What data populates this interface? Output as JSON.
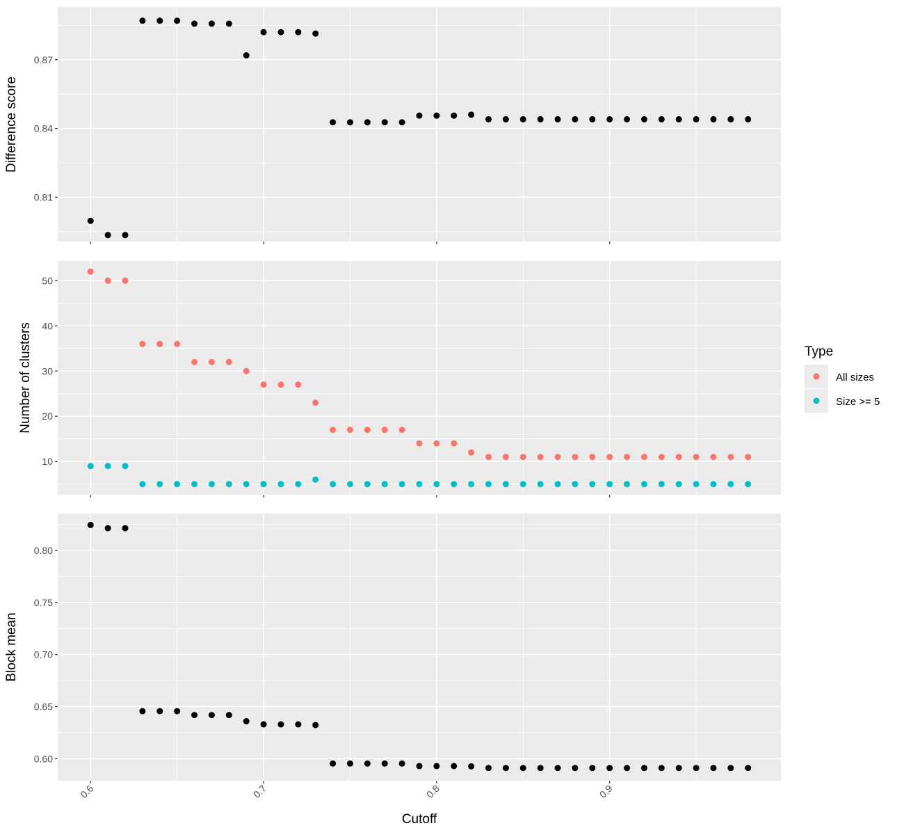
{
  "chart_data": [
    {
      "type": "scatter",
      "panel": "top",
      "ylabel": "Difference score",
      "ylim": [
        0.7907,
        0.893
      ],
      "yticks": [
        0.81,
        0.84,
        0.87
      ],
      "ytick_labels": [
        "0.81",
        "0.84",
        "0.87"
      ],
      "series": [
        {
          "color": "#000000",
          "x": [
            0.6,
            0.61,
            0.62,
            0.63,
            0.64,
            0.65,
            0.66,
            0.67,
            0.68,
            0.69,
            0.7,
            0.71,
            0.72,
            0.73,
            0.74,
            0.75,
            0.76,
            0.77,
            0.78,
            0.79,
            0.8,
            0.81,
            0.82,
            0.83,
            0.84,
            0.85,
            0.86,
            0.87,
            0.88,
            0.89,
            0.9,
            0.91,
            0.92,
            0.93,
            0.94,
            0.95,
            0.96,
            0.97,
            0.98
          ],
          "y": [
            0.7997,
            0.7935,
            0.7935,
            0.887,
            0.887,
            0.887,
            0.8857,
            0.8857,
            0.8857,
            0.8719,
            0.882,
            0.882,
            0.882,
            0.8814,
            0.8427,
            0.8427,
            0.8427,
            0.8427,
            0.8427,
            0.8456,
            0.8456,
            0.8456,
            0.846,
            0.844,
            0.844,
            0.844,
            0.844,
            0.844,
            0.844,
            0.844,
            0.844,
            0.844,
            0.844,
            0.844,
            0.844,
            0.844,
            0.844,
            0.844,
            0.844
          ]
        }
      ]
    },
    {
      "type": "scatter",
      "panel": "middle",
      "ylabel": "Number of clusters",
      "ylim": [
        2.65,
        54.35
      ],
      "yticks": [
        10,
        20,
        30,
        40,
        50
      ],
      "ytick_labels": [
        "10",
        "20",
        "30",
        "40",
        "50"
      ],
      "legend": {
        "title": "Type",
        "position": "right",
        "entries": [
          {
            "label": "All sizes",
            "color": "#f8766d"
          },
          {
            "label": "Size >= 5",
            "color": "#00bfc4"
          }
        ]
      },
      "series": [
        {
          "name": "All sizes",
          "color": "#f8766d",
          "x": [
            0.6,
            0.61,
            0.62,
            0.63,
            0.64,
            0.65,
            0.66,
            0.67,
            0.68,
            0.69,
            0.7,
            0.71,
            0.72,
            0.73,
            0.74,
            0.75,
            0.76,
            0.77,
            0.78,
            0.79,
            0.8,
            0.81,
            0.82,
            0.83,
            0.84,
            0.85,
            0.86,
            0.87,
            0.88,
            0.89,
            0.9,
            0.91,
            0.92,
            0.93,
            0.94,
            0.95,
            0.96,
            0.97,
            0.98
          ],
          "y": [
            52,
            50,
            50,
            36,
            36,
            36,
            32,
            32,
            32,
            30,
            27,
            27,
            27,
            23,
            17,
            17,
            17,
            17,
            17,
            14,
            14,
            14,
            12,
            11,
            11,
            11,
            11,
            11,
            11,
            11,
            11,
            11,
            11,
            11,
            11,
            11,
            11,
            11,
            11
          ]
        },
        {
          "name": "Size >= 5",
          "color": "#00bfc4",
          "x": [
            0.6,
            0.61,
            0.62,
            0.63,
            0.64,
            0.65,
            0.66,
            0.67,
            0.68,
            0.69,
            0.7,
            0.71,
            0.72,
            0.73,
            0.74,
            0.75,
            0.76,
            0.77,
            0.78,
            0.79,
            0.8,
            0.81,
            0.82,
            0.83,
            0.84,
            0.85,
            0.86,
            0.87,
            0.88,
            0.89,
            0.9,
            0.91,
            0.92,
            0.93,
            0.94,
            0.95,
            0.96,
            0.97,
            0.98
          ],
          "y": [
            9,
            9,
            9,
            5,
            5,
            5,
            5,
            5,
            5,
            5,
            5,
            5,
            5,
            6,
            5,
            5,
            5,
            5,
            5,
            5,
            5,
            5,
            5,
            5,
            5,
            5,
            5,
            5,
            5,
            5,
            5,
            5,
            5,
            5,
            5,
            5,
            5,
            5,
            5
          ]
        }
      ]
    },
    {
      "type": "scatter",
      "panel": "bottom",
      "ylabel": "Block mean",
      "xlabel": "Cutoff",
      "ylim": [
        0.5788,
        0.8354
      ],
      "yticks": [
        0.6,
        0.65,
        0.7,
        0.75,
        0.8
      ],
      "ytick_labels": [
        "0.60",
        "0.65",
        "0.70",
        "0.75",
        "0.80"
      ],
      "series": [
        {
          "color": "#000000",
          "x": [
            0.6,
            0.61,
            0.62,
            0.63,
            0.64,
            0.65,
            0.66,
            0.67,
            0.68,
            0.69,
            0.7,
            0.71,
            0.72,
            0.73,
            0.74,
            0.75,
            0.76,
            0.77,
            0.78,
            0.79,
            0.8,
            0.81,
            0.82,
            0.83,
            0.84,
            0.85,
            0.86,
            0.87,
            0.88,
            0.89,
            0.9,
            0.91,
            0.92,
            0.93,
            0.94,
            0.95,
            0.96,
            0.97,
            0.98
          ],
          "y": [
            0.8244,
            0.8213,
            0.8213,
            0.6456,
            0.6456,
            0.6456,
            0.6419,
            0.6419,
            0.6419,
            0.6359,
            0.6329,
            0.6329,
            0.6329,
            0.6323,
            0.5953,
            0.5953,
            0.5953,
            0.5953,
            0.5953,
            0.5929,
            0.5929,
            0.5929,
            0.5926,
            0.591,
            0.591,
            0.591,
            0.591,
            0.591,
            0.591,
            0.591,
            0.591,
            0.591,
            0.591,
            0.591,
            0.591,
            0.591,
            0.591,
            0.591,
            0.591
          ]
        }
      ]
    }
  ],
  "x_axis": {
    "label": "Cutoff",
    "xlim": [
      0.581,
      0.999
    ],
    "ticks": [
      0.6,
      0.7,
      0.8,
      0.9
    ],
    "tick_labels": [
      "0.6",
      "0.7",
      "0.8",
      "0.9"
    ]
  }
}
